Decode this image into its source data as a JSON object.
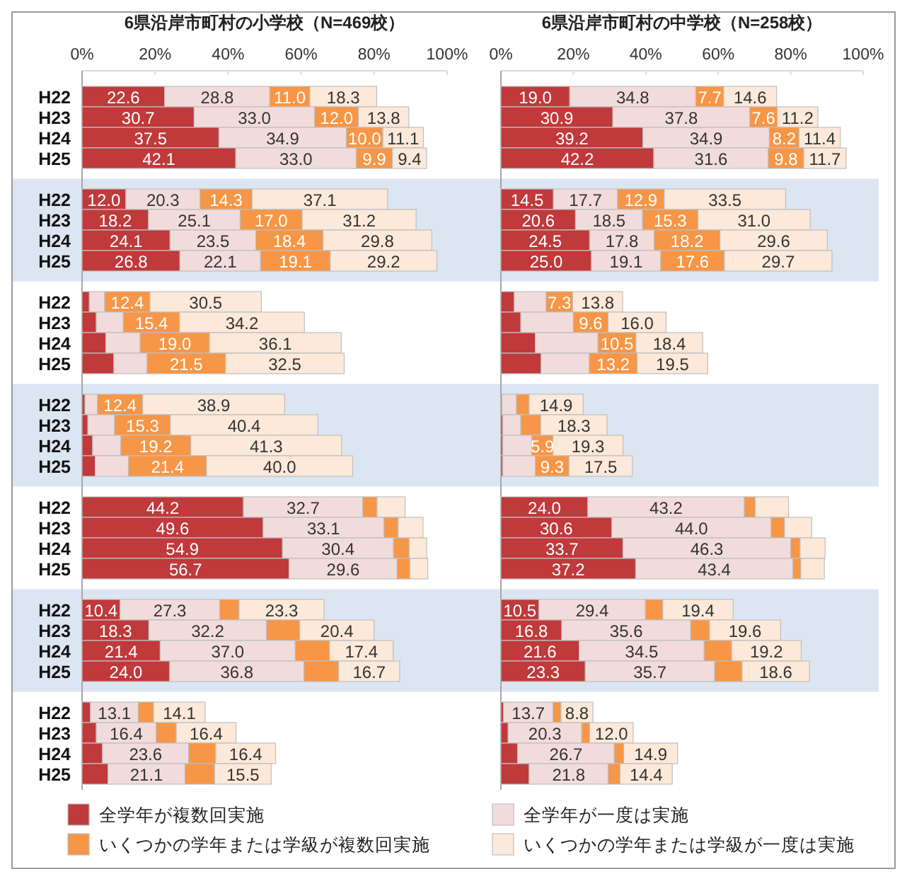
{
  "chart_data": [
    {
      "type": "bar",
      "orientation": "horizontal",
      "stacked": true,
      "title": "6県沿岸市町村の小学校（N=469校）",
      "legend": "bottom",
      "categories": [
        "H22",
        "H23",
        "H24",
        "H25",
        null,
        "H22",
        "H23",
        "H24",
        "H25",
        null,
        "H22",
        "H23",
        "H24",
        "H25",
        null,
        "H22",
        "H23",
        "H24",
        "H25",
        null,
        "H22",
        "H23",
        "H24",
        "H25",
        null,
        "H22",
        "H23",
        "H24",
        "H25",
        null,
        "H22",
        "H23",
        "H24",
        "H25"
      ],
      "xlim": [
        0,
        100
      ],
      "xticks": [
        {
          "value": 0,
          "label": "0%"
        },
        {
          "value": 20,
          "label": "20%"
        },
        {
          "value": 40,
          "label": "40%"
        },
        {
          "value": 60,
          "label": "60%"
        },
        {
          "value": 80,
          "label": "80%"
        },
        {
          "value": 100,
          "label": "100%"
        }
      ],
      "series": [
        {
          "name": "全学年が複数回実施",
          "color": "#c0393b",
          "values": [
            22.6,
            30.7,
            37.5,
            42.1,
            null,
            12.0,
            18.2,
            24.1,
            26.8,
            null,
            2.0,
            3.9,
            6.5,
            8.7,
            null,
            0.8,
            1.6,
            2.9,
            3.6,
            null,
            44.2,
            49.6,
            54.9,
            56.7,
            null,
            10.4,
            18.3,
            21.4,
            24.0,
            null,
            2.3,
            3.9,
            5.6,
            7.1
          ],
          "value_labels": [
            "22.6",
            "30.7",
            "37.5",
            "42.1",
            null,
            "12.0",
            "18.2",
            "24.1",
            "26.8",
            null,
            null,
            null,
            null,
            null,
            null,
            null,
            null,
            null,
            null,
            null,
            "44.2",
            "49.6",
            "54.9",
            "56.7",
            null,
            "10.4",
            "18.3",
            "21.4",
            "24.0",
            null,
            null,
            null,
            null,
            null
          ]
        },
        {
          "name": "全学年が一度は実施",
          "color": "#f2dcdb",
          "values": [
            28.8,
            33.0,
            34.9,
            33.0,
            null,
            20.3,
            25.1,
            23.5,
            22.1,
            null,
            4.2,
            7.4,
            9.4,
            9.1,
            null,
            3.4,
            7.3,
            7.7,
            9.1,
            null,
            32.7,
            33.1,
            30.4,
            29.6,
            null,
            27.3,
            32.2,
            37.0,
            36.8,
            null,
            13.1,
            16.4,
            23.6,
            21.1
          ],
          "value_labels": [
            "28.8",
            "33.0",
            "34.9",
            "33.0",
            null,
            "20.3",
            "25.1",
            "23.5",
            "22.1",
            null,
            null,
            null,
            null,
            null,
            null,
            null,
            null,
            null,
            null,
            null,
            "32.7",
            "33.1",
            "30.4",
            "29.6",
            null,
            "27.3",
            "32.2",
            "37.0",
            "36.8",
            null,
            "13.1",
            "16.4",
            "23.6",
            "21.1"
          ]
        },
        {
          "name": "いくつかの学年または学級が複数回実施",
          "color": "#f79646",
          "values": [
            11.0,
            12.0,
            10.0,
            9.9,
            null,
            14.3,
            17.0,
            18.4,
            19.1,
            null,
            12.4,
            15.4,
            19.0,
            21.5,
            null,
            12.4,
            15.3,
            19.2,
            21.4,
            null,
            3.9,
            3.9,
            4.3,
            3.5,
            null,
            5.3,
            9.1,
            9.4,
            9.5,
            null,
            4.2,
            5.5,
            7.4,
            8.1
          ],
          "value_labels": [
            "11.0",
            "12.0",
            "10.0",
            "9.9",
            null,
            "14.3",
            "17.0",
            "18.4",
            "19.1",
            null,
            "12.4",
            "15.4",
            "19.0",
            "21.5",
            null,
            "12.4",
            "15.3",
            "19.2",
            "21.4",
            null,
            null,
            null,
            null,
            null,
            null,
            null,
            null,
            null,
            null,
            null,
            null,
            null,
            null,
            null
          ]
        },
        {
          "name": "いくつかの学年または学級が一度は実施",
          "color": "#fde9d9",
          "values": [
            18.3,
            13.8,
            11.1,
            9.4,
            null,
            37.1,
            31.2,
            29.8,
            29.2,
            null,
            30.5,
            34.2,
            36.1,
            32.5,
            null,
            38.9,
            40.4,
            41.3,
            40.0,
            null,
            7.7,
            6.8,
            4.8,
            4.9,
            null,
            23.3,
            20.4,
            17.4,
            16.7,
            null,
            14.1,
            16.4,
            16.4,
            15.5
          ],
          "value_labels": [
            "18.3",
            "13.8",
            "11.1",
            "9.4",
            null,
            "37.1",
            "31.2",
            "29.8",
            "29.2",
            null,
            "30.5",
            "34.2",
            "36.1",
            "32.5",
            null,
            "38.9",
            "40.4",
            "41.3",
            "40.0",
            null,
            null,
            null,
            null,
            null,
            null,
            "23.3",
            "20.4",
            "17.4",
            "16.7",
            null,
            "14.1",
            "16.4",
            "16.4",
            "15.5"
          ]
        }
      ]
    },
    {
      "type": "bar",
      "orientation": "horizontal",
      "stacked": true,
      "title": "6県沿岸市町村の中学校（N=258校）",
      "legend": "bottom",
      "tick_labels": "x",
      "categories": [
        "H22",
        "H23",
        "H24",
        "H25",
        null,
        "H22",
        "H23",
        "H24",
        "H25",
        null,
        "H22",
        "H23",
        "H24",
        "H25",
        null,
        "H22",
        "H23",
        "H24",
        "H25",
        null,
        "H22",
        "H23",
        "H24",
        "H25",
        null,
        "H22",
        "H23",
        "H24",
        "H25",
        null,
        "H22",
        "H23",
        "H24",
        "H25"
      ],
      "xlim": [
        0,
        100
      ],
      "xticks": [
        {
          "value": 0,
          "label": "0%"
        },
        {
          "value": 20,
          "label": "20%"
        },
        {
          "value": 40,
          "label": "40%"
        },
        {
          "value": 60,
          "label": "60%"
        },
        {
          "value": 80,
          "label": "80%"
        },
        {
          "value": 100,
          "label": "100%"
        }
      ],
      "series": [
        {
          "name": "全学年が複数回実施",
          "color": "#c0393b",
          "values": [
            19.0,
            30.9,
            39.2,
            42.2,
            null,
            14.5,
            20.6,
            24.5,
            25.0,
            null,
            3.7,
            5.5,
            9.5,
            11.1,
            null,
            0.3,
            0.5,
            0.5,
            0.5,
            null,
            24.0,
            30.6,
            33.7,
            37.2,
            null,
            10.5,
            16.8,
            21.6,
            23.3,
            null,
            0.7,
            2.0,
            4.6,
            7.8
          ],
          "value_labels": [
            "19.0",
            "30.9",
            "39.2",
            "42.2",
            null,
            "14.5",
            "20.6",
            "24.5",
            "25.0",
            null,
            null,
            null,
            null,
            null,
            null,
            null,
            null,
            null,
            null,
            null,
            "24.0",
            "30.6",
            "33.7",
            "37.2",
            null,
            "10.5",
            "16.8",
            "21.6",
            "23.3",
            null,
            null,
            null,
            null,
            null
          ]
        },
        {
          "name": "全学年が一度は実施",
          "color": "#f2dcdb",
          "values": [
            34.8,
            37.8,
            34.9,
            31.6,
            null,
            17.7,
            18.5,
            17.8,
            19.1,
            null,
            8.8,
            14.5,
            17.3,
            13.3,
            null,
            4.0,
            5.0,
            8.0,
            9.0,
            null,
            43.2,
            44.0,
            46.3,
            43.4,
            null,
            29.4,
            35.6,
            34.5,
            35.7,
            null,
            13.7,
            20.3,
            26.7,
            21.8
          ],
          "value_labels": [
            "34.8",
            "37.8",
            "34.9",
            "31.6",
            null,
            "17.7",
            "18.5",
            "17.8",
            "19.1",
            null,
            null,
            null,
            null,
            null,
            null,
            null,
            null,
            null,
            null,
            null,
            "43.2",
            "44.0",
            "46.3",
            "43.4",
            null,
            "29.4",
            "35.6",
            "34.5",
            "35.7",
            null,
            "13.7",
            "20.3",
            "26.7",
            "21.8"
          ]
        },
        {
          "name": "いくつかの学年または学級が複数回実施",
          "color": "#f79646",
          "values": [
            7.7,
            7.6,
            8.2,
            9.8,
            null,
            12.9,
            15.3,
            18.2,
            17.6,
            null,
            7.3,
            9.6,
            10.5,
            13.2,
            null,
            3.5,
            5.5,
            5.9,
            9.3,
            null,
            3.0,
            3.7,
            2.6,
            2.2,
            null,
            4.8,
            5.2,
            7.6,
            7.6,
            null,
            2.2,
            2.2,
            2.6,
            3.3
          ],
          "value_labels": [
            "7.7",
            "7.6",
            "8.2",
            "9.8",
            null,
            "12.9",
            "15.3",
            "18.2",
            "17.6",
            null,
            "7.3",
            "9.6",
            "10.5",
            "13.2",
            null,
            null,
            null,
            "5.9",
            "9.3",
            null,
            null,
            null,
            null,
            null,
            null,
            null,
            null,
            null,
            null,
            null,
            null,
            null,
            null,
            null
          ]
        },
        {
          "name": "いくつかの学年または学級が一度は実施",
          "color": "#fde9d9",
          "values": [
            14.6,
            11.2,
            11.4,
            11.7,
            null,
            33.5,
            31.0,
            29.6,
            29.7,
            null,
            13.8,
            16.0,
            18.4,
            19.5,
            null,
            14.9,
            18.3,
            19.3,
            17.5,
            null,
            9.2,
            7.5,
            6.9,
            6.5,
            null,
            19.4,
            19.6,
            19.2,
            18.6,
            null,
            8.8,
            12.0,
            14.9,
            14.4
          ],
          "value_labels": [
            "14.6",
            "11.2",
            "11.4",
            "11.7",
            null,
            "33.5",
            "31.0",
            "29.6",
            "29.7",
            null,
            "13.8",
            "16.0",
            "18.4",
            "19.5",
            null,
            "14.9",
            "18.3",
            "19.3",
            "17.5",
            null,
            null,
            null,
            null,
            null,
            null,
            "19.4",
            "19.6",
            "19.2",
            "18.6",
            null,
            "8.8",
            "12.0",
            "14.9",
            "14.4"
          ]
        }
      ]
    }
  ]
}
